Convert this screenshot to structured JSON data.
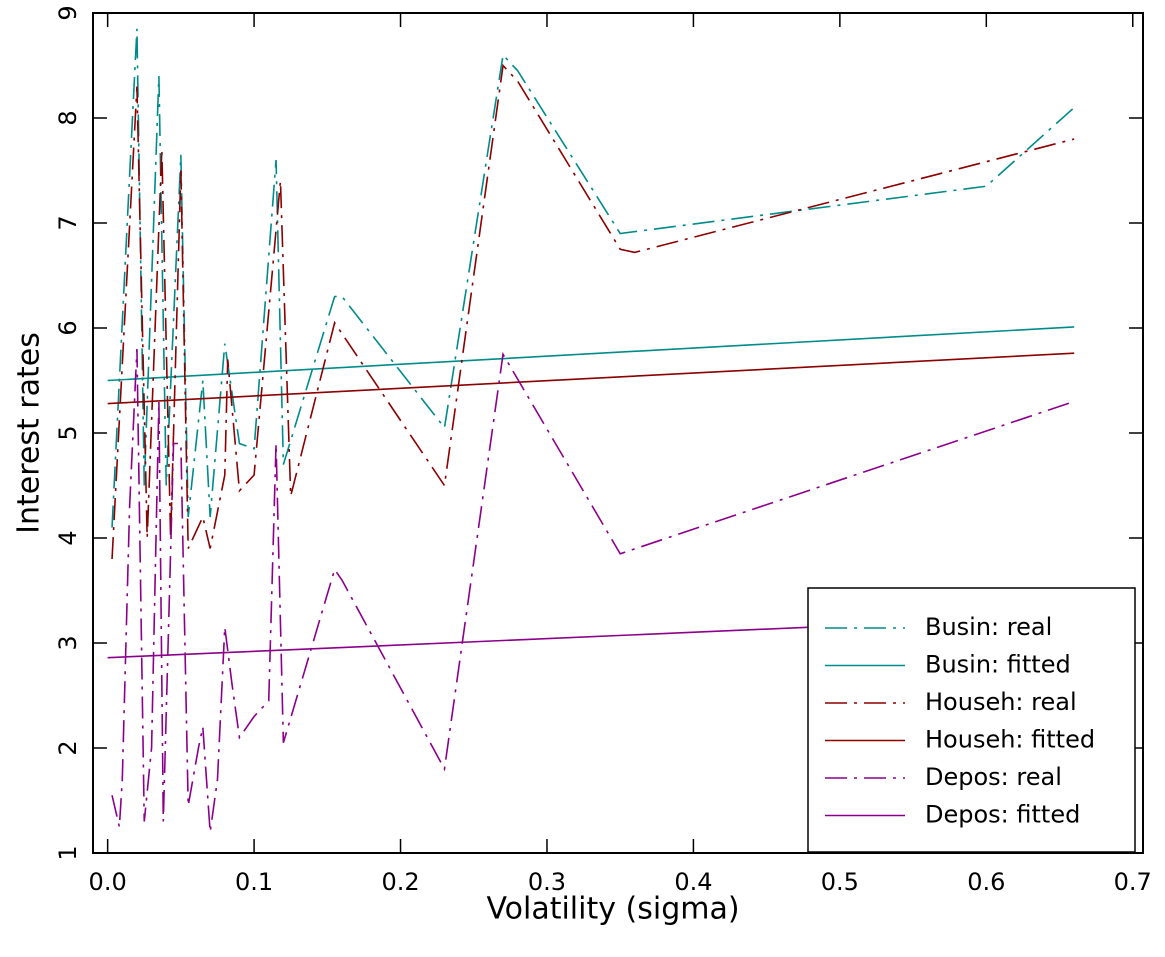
{
  "chart_data": {
    "type": "line",
    "xlabel": "Volatility (sigma)",
    "ylabel": "Interest rates",
    "xlim": [
      -0.01,
      0.707
    ],
    "ylim": [
      1,
      9
    ],
    "xticks": [
      {
        "value": 0,
        "label": "0.0"
      },
      0.1,
      0.2,
      0.3,
      0.4,
      0.5,
      0.6,
      0.7
    ],
    "yticks": [
      1,
      2,
      3,
      4,
      5,
      6,
      7,
      8,
      9
    ],
    "grid": false,
    "legend": "lower right",
    "series": [
      {
        "name": "Busin: real",
        "color": "#008b8b",
        "linestyle": "dashdot",
        "x": [
          0.003,
          0.02,
          0.025,
          0.035,
          0.04,
          0.05,
          0.055,
          0.065,
          0.07,
          0.08,
          0.09,
          0.1,
          0.115,
          0.12,
          0.155,
          0.16,
          0.23,
          0.27,
          0.28,
          0.35,
          0.6,
          0.66
        ],
        "values": [
          4.1,
          8.85,
          4.5,
          8.4,
          4.5,
          7.65,
          4.2,
          5.5,
          4.2,
          5.85,
          4.9,
          4.85,
          7.6,
          4.7,
          6.3,
          6.3,
          5.05,
          8.6,
          8.45,
          6.9,
          7.35,
          8.1
        ]
      },
      {
        "name": "Busin: fitted",
        "color": "#008b8b",
        "linestyle": "solid",
        "x": [
          0,
          0.66
        ],
        "values": [
          5.5,
          6.01
        ]
      },
      {
        "name": "Househ: real",
        "color": "#8b0000",
        "linestyle": "dashdot",
        "x": [
          0.003,
          0.02,
          0.027,
          0.037,
          0.043,
          0.05,
          0.055,
          0.065,
          0.07,
          0.08,
          0.082,
          0.09,
          0.1,
          0.118,
          0.125,
          0.155,
          0.23,
          0.27,
          0.28,
          0.35,
          0.36,
          0.66
        ],
        "values": [
          3.8,
          8.3,
          4.0,
          7.7,
          4.0,
          7.5,
          3.9,
          4.2,
          3.9,
          4.6,
          5.7,
          4.45,
          4.6,
          7.4,
          4.4,
          6.05,
          4.5,
          8.5,
          8.35,
          6.75,
          6.72,
          7.8
        ]
      },
      {
        "name": "Househ: fitted",
        "color": "#8b0000",
        "linestyle": "solid",
        "x": [
          0,
          0.66
        ],
        "values": [
          5.28,
          5.76
        ]
      },
      {
        "name": "Depos: real",
        "color": "#8b008b",
        "linestyle": "dashdot",
        "x": [
          0.003,
          0.008,
          0.01,
          0.015,
          0.02,
          0.025,
          0.03,
          0.035,
          0.038,
          0.045,
          0.05,
          0.055,
          0.062,
          0.065,
          0.07,
          0.075,
          0.08,
          0.085,
          0.09,
          0.1,
          0.11,
          0.115,
          0.12,
          0.155,
          0.16,
          0.23,
          0.27,
          0.35,
          0.66
        ],
        "values": [
          1.55,
          1.25,
          1.7,
          4.3,
          5.8,
          1.3,
          2.0,
          5.3,
          1.3,
          4.9,
          4.9,
          1.45,
          2.0,
          2.2,
          1.2,
          1.7,
          3.15,
          2.6,
          2.1,
          2.3,
          2.45,
          4.9,
          2.05,
          3.7,
          3.6,
          1.8,
          5.75,
          3.85,
          5.3
        ]
      },
      {
        "name": "Depos: fitted",
        "color": "#8b008b",
        "linestyle": "solid",
        "x": [
          0,
          0.66
        ],
        "values": [
          2.86,
          3.26
        ]
      }
    ]
  }
}
